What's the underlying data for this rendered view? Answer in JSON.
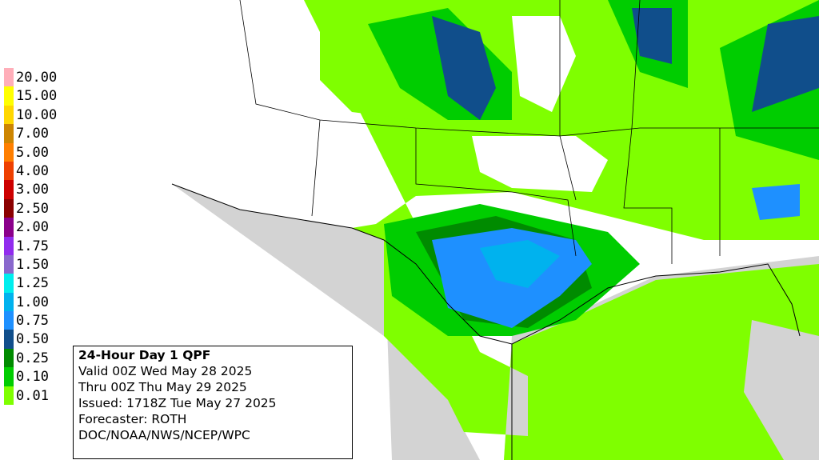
{
  "legend": {
    "items": [
      {
        "label": "20.00",
        "color": "#ffaeb9"
      },
      {
        "label": "15.00",
        "color": "#ffff00"
      },
      {
        "label": "10.00",
        "color": "#ffd700"
      },
      {
        "label": "7.00",
        "color": "#cd8500"
      },
      {
        "label": "5.00",
        "color": "#ff7f00"
      },
      {
        "label": "4.00",
        "color": "#ee4000"
      },
      {
        "label": "3.00",
        "color": "#cd0000"
      },
      {
        "label": "2.50",
        "color": "#8b0000"
      },
      {
        "label": "2.00",
        "color": "#8b008b"
      },
      {
        "label": "1.75",
        "color": "#912cee"
      },
      {
        "label": "1.50",
        "color": "#8968cd"
      },
      {
        "label": "1.25",
        "color": "#00eeee"
      },
      {
        "label": "1.00",
        "color": "#00b2ee"
      },
      {
        "label": "0.75",
        "color": "#1e90ff"
      },
      {
        "label": "0.50",
        "color": "#104e8b"
      },
      {
        "label": "0.25",
        "color": "#008b00"
      },
      {
        "label": "0.10",
        "color": "#00cd00"
      },
      {
        "label": "0.01",
        "color": "#7fff00"
      }
    ]
  },
  "info": {
    "title": "24-Hour Day 1 QPF",
    "lines": [
      "Valid 00Z Wed May 28 2025",
      "Thru 00Z Thu May 29 2025",
      "Issued: 1718Z Tue May 27 2025",
      "Forecaster: ROTH",
      "DOC/NOAA/NWS/NCEP/WPC"
    ]
  }
}
